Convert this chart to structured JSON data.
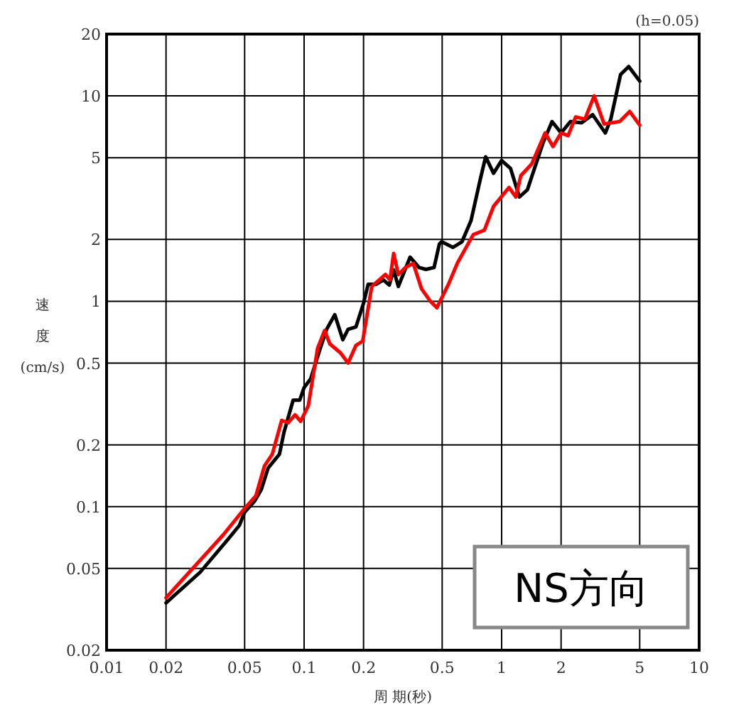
{
  "chart_data": {
    "type": "line",
    "xlabel": "周 期(秒)",
    "ylabel": "速度(cm/s)",
    "log": "xy",
    "grid": true,
    "line_style": "solid",
    "xlim": [
      0.01,
      10
    ],
    "ylim": [
      0.02,
      20
    ],
    "xticks": [
      0.01,
      0.02,
      0.05,
      0.1,
      0.2,
      0.5,
      1,
      2,
      5,
      10
    ],
    "yticks": [
      0.02,
      0.05,
      0.1,
      0.2,
      0.5,
      1,
      2,
      5,
      10,
      20
    ],
    "annotations": [
      "(h=0.05)",
      "NS方向"
    ],
    "series": [
      {
        "color": "#000000",
        "x": [
          0.02,
          0.0298,
          0.041,
          0.047,
          0.05,
          0.056,
          0.0607,
          0.0657,
          0.075,
          0.079,
          0.088,
          0.095,
          0.1,
          0.108,
          0.12,
          0.13,
          0.143,
          0.157,
          0.167,
          0.183,
          0.2,
          0.211,
          0.232,
          0.252,
          0.27,
          0.284,
          0.3,
          0.344,
          0.382,
          0.414,
          0.455,
          0.484,
          0.497,
          0.567,
          0.63,
          0.7,
          0.777,
          0.83,
          0.91,
          1.0,
          1.11,
          1.23,
          1.35,
          1.62,
          1.8,
          2.0,
          2.23,
          2.54,
          2.89,
          3.35,
          3.57,
          4.0,
          4.4,
          5.0
        ],
        "values": [
          0.034,
          0.048,
          0.069,
          0.081,
          0.094,
          0.106,
          0.121,
          0.154,
          0.18,
          0.229,
          0.33,
          0.33,
          0.38,
          0.42,
          0.58,
          0.73,
          0.86,
          0.65,
          0.73,
          0.75,
          0.98,
          1.21,
          1.21,
          1.27,
          1.2,
          1.42,
          1.18,
          1.64,
          1.46,
          1.43,
          1.46,
          1.9,
          1.95,
          1.83,
          1.95,
          2.47,
          3.87,
          5.05,
          4.2,
          4.85,
          4.43,
          3.22,
          3.49,
          5.9,
          7.5,
          6.6,
          7.5,
          7.4,
          8.1,
          6.6,
          7.7,
          12.7,
          13.9,
          11.8
        ]
      },
      {
        "color": "#ff0000",
        "x": [
          0.02,
          0.039,
          0.05,
          0.057,
          0.063,
          0.069,
          0.077,
          0.083,
          0.09,
          0.096,
          0.105,
          0.117,
          0.127,
          0.135,
          0.153,
          0.167,
          0.183,
          0.198,
          0.22,
          0.258,
          0.272,
          0.284,
          0.3,
          0.326,
          0.357,
          0.393,
          0.436,
          0.47,
          0.538,
          0.598,
          0.718,
          0.818,
          0.91,
          1.09,
          1.18,
          1.25,
          1.42,
          1.66,
          1.82,
          2.0,
          2.17,
          2.37,
          2.64,
          2.94,
          3.3,
          3.96,
          4.45,
          5.0
        ],
        "values": [
          0.036,
          0.073,
          0.098,
          0.113,
          0.158,
          0.18,
          0.263,
          0.256,
          0.28,
          0.26,
          0.31,
          0.59,
          0.72,
          0.62,
          0.56,
          0.5,
          0.61,
          0.64,
          1.18,
          1.35,
          1.27,
          1.71,
          1.35,
          1.46,
          1.53,
          1.15,
          1.0,
          0.93,
          1.21,
          1.54,
          2.11,
          2.22,
          2.9,
          3.58,
          3.22,
          4.09,
          4.66,
          6.6,
          5.67,
          6.6,
          6.4,
          7.9,
          7.7,
          10.0,
          7.3,
          7.5,
          8.4,
          7.2
        ]
      }
    ]
  }
}
